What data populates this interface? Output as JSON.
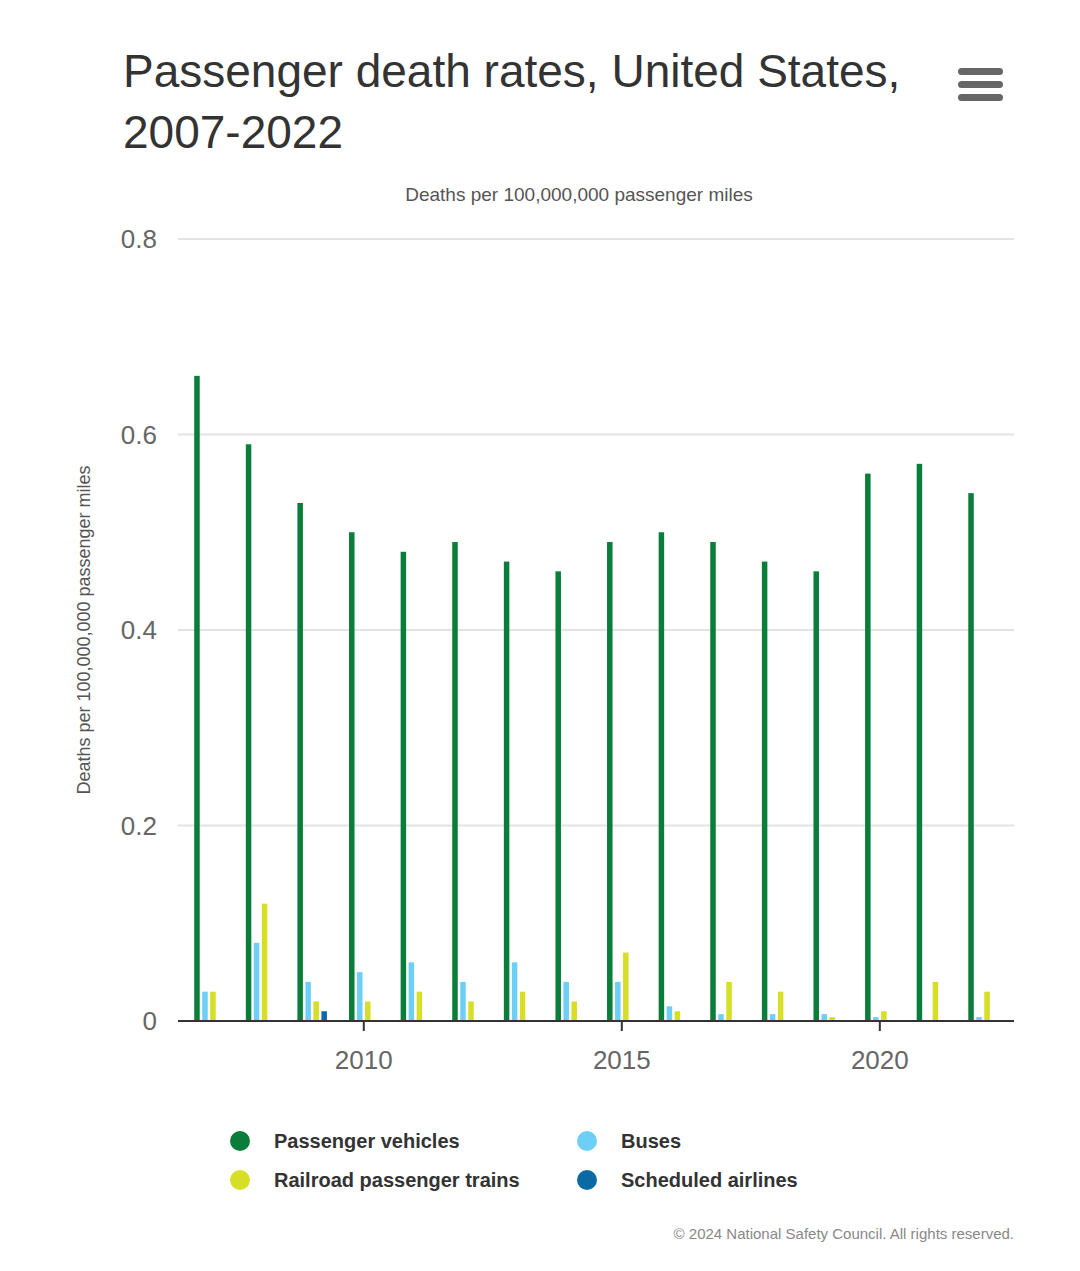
{
  "chart_data": {
    "type": "bar",
    "title": "Passenger death rates, United States, 2007-2022",
    "subtitle": "Deaths per 100,000,000 passenger miles",
    "y_label": "Deaths per 100,000,000 passenger miles",
    "x": [
      2007,
      2008,
      2009,
      2010,
      2011,
      2012,
      2013,
      2014,
      2015,
      2016,
      2017,
      2018,
      2019,
      2020,
      2021,
      2022
    ],
    "series": [
      {
        "name": "Passenger vehicles",
        "color": "#0b7d3b",
        "values": [
          0.66,
          0.59,
          0.53,
          0.5,
          0.48,
          0.49,
          0.47,
          0.46,
          0.49,
          0.5,
          0.49,
          0.47,
          0.46,
          0.56,
          0.57,
          0.54
        ]
      },
      {
        "name": "Buses",
        "color": "#6dcff6",
        "values": [
          0.03,
          0.08,
          0.04,
          0.05,
          0.06,
          0.04,
          0.06,
          0.04,
          0.04,
          0.015,
          0.007,
          0.007,
          0.007,
          0.004,
          0,
          0.004
        ]
      },
      {
        "name": "Railroad passenger trains",
        "color": "#d6df26",
        "values": [
          0.03,
          0.12,
          0.02,
          0.02,
          0.03,
          0.02,
          0.03,
          0.02,
          0.07,
          0.01,
          0.04,
          0.03,
          0.004,
          0.01,
          0.04,
          0.03
        ]
      },
      {
        "name": "Scheduled airlines",
        "color": "#0b6aa3",
        "values": [
          0,
          0,
          0.01,
          0,
          0,
          0,
          0,
          0,
          0,
          0,
          0,
          0,
          0,
          0,
          0,
          0
        ]
      }
    ],
    "xlim": [
      2006.4,
      2022.6
    ],
    "xticks": [
      2010,
      2015,
      2020
    ],
    "ylim": [
      0,
      0.8
    ],
    "yticks": [
      0,
      0.2,
      0.4,
      0.6,
      0.8
    ],
    "grid": true,
    "legend": "bottom",
    "footer": "© 2024 National Safety Council. All rights reserved."
  }
}
